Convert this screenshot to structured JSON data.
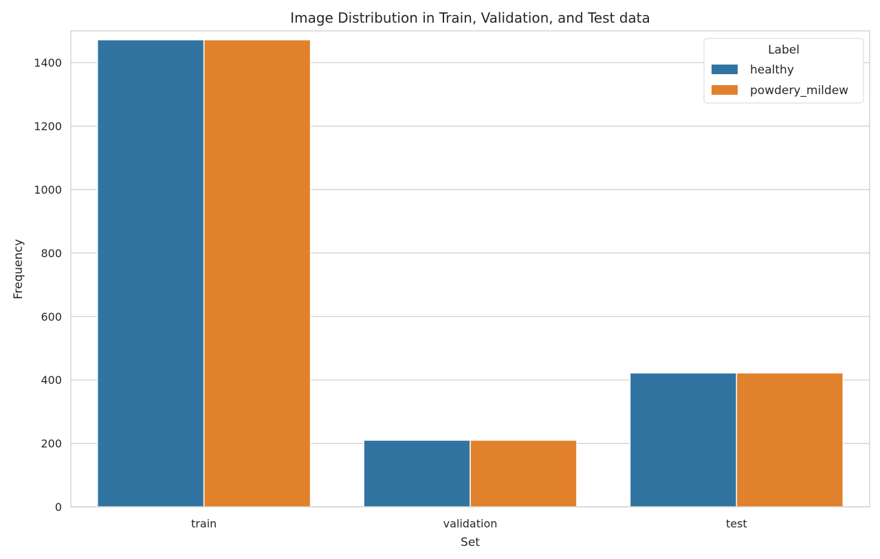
{
  "chart_data": {
    "type": "bar",
    "title": "Image Distribution in Train, Validation, and Test data",
    "xlabel": "Set",
    "ylabel": "Frequency",
    "categories": [
      "train",
      "validation",
      "test"
    ],
    "series": [
      {
        "name": "healthy",
        "values": [
          1472,
          210,
          422
        ],
        "color": "#3274a1"
      },
      {
        "name": "powdery_mildew",
        "values": [
          1472,
          210,
          422
        ],
        "color": "#e1812c"
      }
    ],
    "ylim": [
      0,
      1500
    ],
    "yticks": [
      0,
      200,
      400,
      600,
      800,
      1000,
      1200,
      1400
    ],
    "grid": true,
    "legend": {
      "title": "Label",
      "placement": "top-right"
    }
  }
}
